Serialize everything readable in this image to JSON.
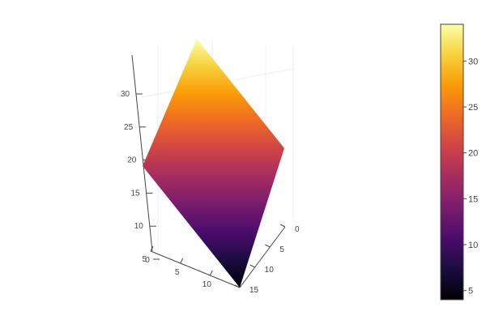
{
  "chart_data": {
    "type": "surface",
    "title": "",
    "x": [
      0,
      15
    ],
    "y": [
      0,
      15
    ],
    "z": [
      [
        20,
        34
      ],
      [
        4,
        19
      ]
    ],
    "x_ticks": [
      "0",
      "5",
      "10"
    ],
    "y_ticks": [
      "0",
      "5",
      "10",
      "15"
    ],
    "z_ticks": [
      "5",
      "10",
      "15",
      "20",
      "25",
      "30"
    ],
    "zlim": [
      4,
      34
    ],
    "colorscale": "inferno",
    "colorscale_stops": [
      "#000004",
      "#1b0c41",
      "#4a0c6b",
      "#781c6d",
      "#a52c60",
      "#cf4446",
      "#ed6925",
      "#fb9b06",
      "#f7d13d",
      "#fcffa4"
    ],
    "colorbar": {
      "range": [
        4,
        34
      ],
      "ticks": [
        "5",
        "10",
        "15",
        "20",
        "25",
        "30"
      ],
      "tick_values": [
        5,
        10,
        15,
        20,
        25,
        30
      ]
    }
  }
}
